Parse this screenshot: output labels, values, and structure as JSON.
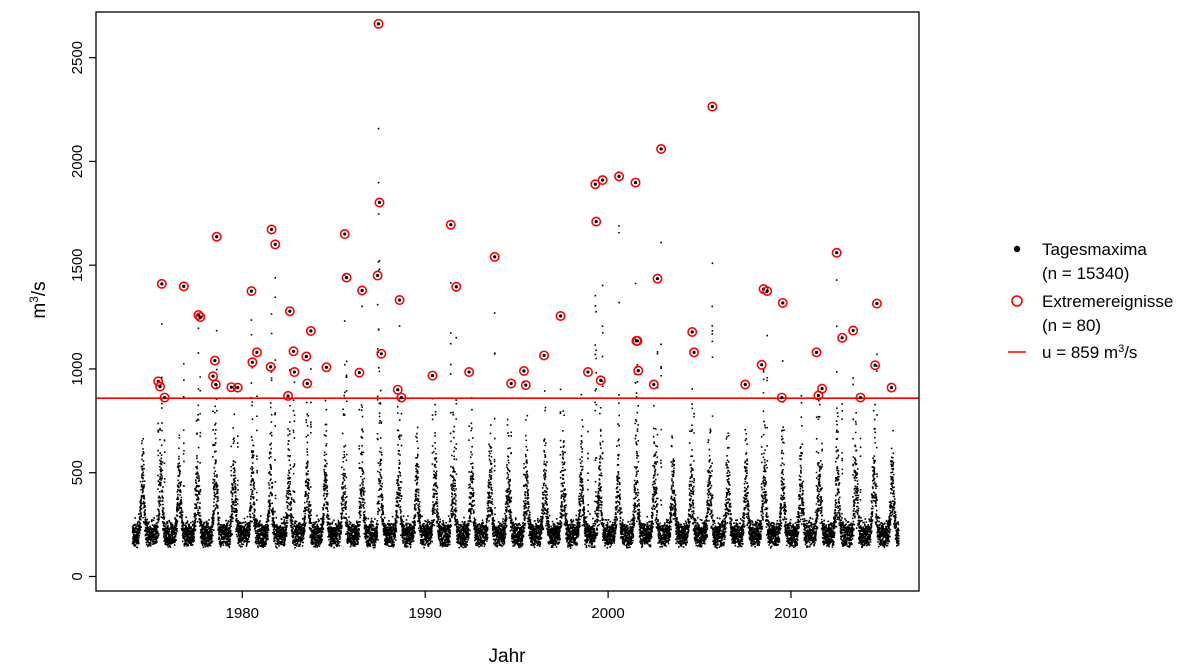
{
  "chart_data": {
    "type": "scatter",
    "xlabel": "Jahr",
    "ylabel_base": "m",
    "ylabel_exp": "3",
    "ylabel_tail": "/s",
    "xlim": [
      1972.0,
      2017.0
    ],
    "ylim": [
      -70,
      2720
    ],
    "xticks": [
      1980,
      1990,
      2000,
      2010
    ],
    "yticks": [
      0,
      500,
      1000,
      1500,
      2000,
      2500
    ],
    "legend_position": "right",
    "legend": [
      {
        "label": "Tagesmaxima",
        "sub": "(n = 15340)",
        "symbol": "filled-dot",
        "color": "#000000"
      },
      {
        "label": "Extremereignisse",
        "sub": "(n = 80)",
        "symbol": "open-circle",
        "color": "#ff0000"
      },
      {
        "label_prefix": "u = 859 m",
        "label_exp": "3",
        "label_suffix": "/s",
        "symbol": "line",
        "color": "#ff0000"
      }
    ],
    "threshold": 859,
    "threshold_color": "#ff0000",
    "start_year": 1974.0,
    "end_year": 2015.9,
    "series_daily": {
      "name": "Tagesmaxima",
      "count": 15340,
      "color": "#000000"
    },
    "series_extremes": {
      "name": "Extremereignisse",
      "count": 80,
      "color": "#ff0000",
      "points": [
        [
          1975.4,
          940
        ],
        [
          1975.5,
          915
        ],
        [
          1975.6,
          1410
        ],
        [
          1975.75,
          862
        ],
        [
          1976.8,
          1398
        ],
        [
          1977.6,
          1260
        ],
        [
          1977.7,
          1250
        ],
        [
          1978.4,
          965
        ],
        [
          1978.5,
          1040
        ],
        [
          1978.55,
          925
        ],
        [
          1978.6,
          1637
        ],
        [
          1979.4,
          912
        ],
        [
          1979.75,
          910
        ],
        [
          1980.5,
          1375
        ],
        [
          1980.55,
          1032
        ],
        [
          1980.8,
          1080
        ],
        [
          1981.55,
          1010
        ],
        [
          1981.6,
          1672
        ],
        [
          1981.8,
          1600
        ],
        [
          1982.5,
          870
        ],
        [
          1982.6,
          1278
        ],
        [
          1982.8,
          1085
        ],
        [
          1982.85,
          985
        ],
        [
          1983.5,
          1060
        ],
        [
          1983.55,
          930
        ],
        [
          1983.75,
          1183
        ],
        [
          1984.6,
          1008
        ],
        [
          1985.6,
          1650
        ],
        [
          1985.7,
          1440
        ],
        [
          1986.4,
          982
        ],
        [
          1986.55,
          1378
        ],
        [
          1987.4,
          1450
        ],
        [
          1987.45,
          2663
        ],
        [
          1987.5,
          1802
        ],
        [
          1987.6,
          1073
        ],
        [
          1988.5,
          900
        ],
        [
          1988.6,
          1332
        ],
        [
          1988.7,
          862
        ],
        [
          1990.4,
          968
        ],
        [
          1991.4,
          1695
        ],
        [
          1991.7,
          1396
        ],
        [
          1992.4,
          985
        ],
        [
          1993.8,
          1540
        ],
        [
          1994.7,
          930
        ],
        [
          1995.4,
          990
        ],
        [
          1995.5,
          922
        ],
        [
          1996.5,
          1065
        ],
        [
          1997.4,
          1255
        ],
        [
          1998.9,
          985
        ],
        [
          1999.3,
          1890
        ],
        [
          1999.35,
          1710
        ],
        [
          1999.6,
          945
        ],
        [
          1999.7,
          1910
        ],
        [
          2000.6,
          1928
        ],
        [
          2001.5,
          1898
        ],
        [
          2001.55,
          1135
        ],
        [
          2001.6,
          1135
        ],
        [
          2001.65,
          992
        ],
        [
          2002.5,
          925
        ],
        [
          2002.7,
          1435
        ],
        [
          2002.9,
          2060
        ],
        [
          2004.6,
          1178
        ],
        [
          2004.7,
          1080
        ],
        [
          2005.7,
          2264
        ],
        [
          2007.5,
          925
        ],
        [
          2008.4,
          1020
        ],
        [
          2008.5,
          1385
        ],
        [
          2008.7,
          1375
        ],
        [
          2009.5,
          862
        ],
        [
          2009.55,
          1318
        ],
        [
          2011.4,
          1080
        ],
        [
          2011.5,
          872
        ],
        [
          2011.7,
          905
        ],
        [
          2012.5,
          1560
        ],
        [
          2012.8,
          1150
        ],
        [
          2013.4,
          1185
        ],
        [
          2013.8,
          862
        ],
        [
          2014.6,
          1018
        ],
        [
          2014.7,
          1315
        ],
        [
          2015.5,
          910
        ]
      ]
    }
  }
}
